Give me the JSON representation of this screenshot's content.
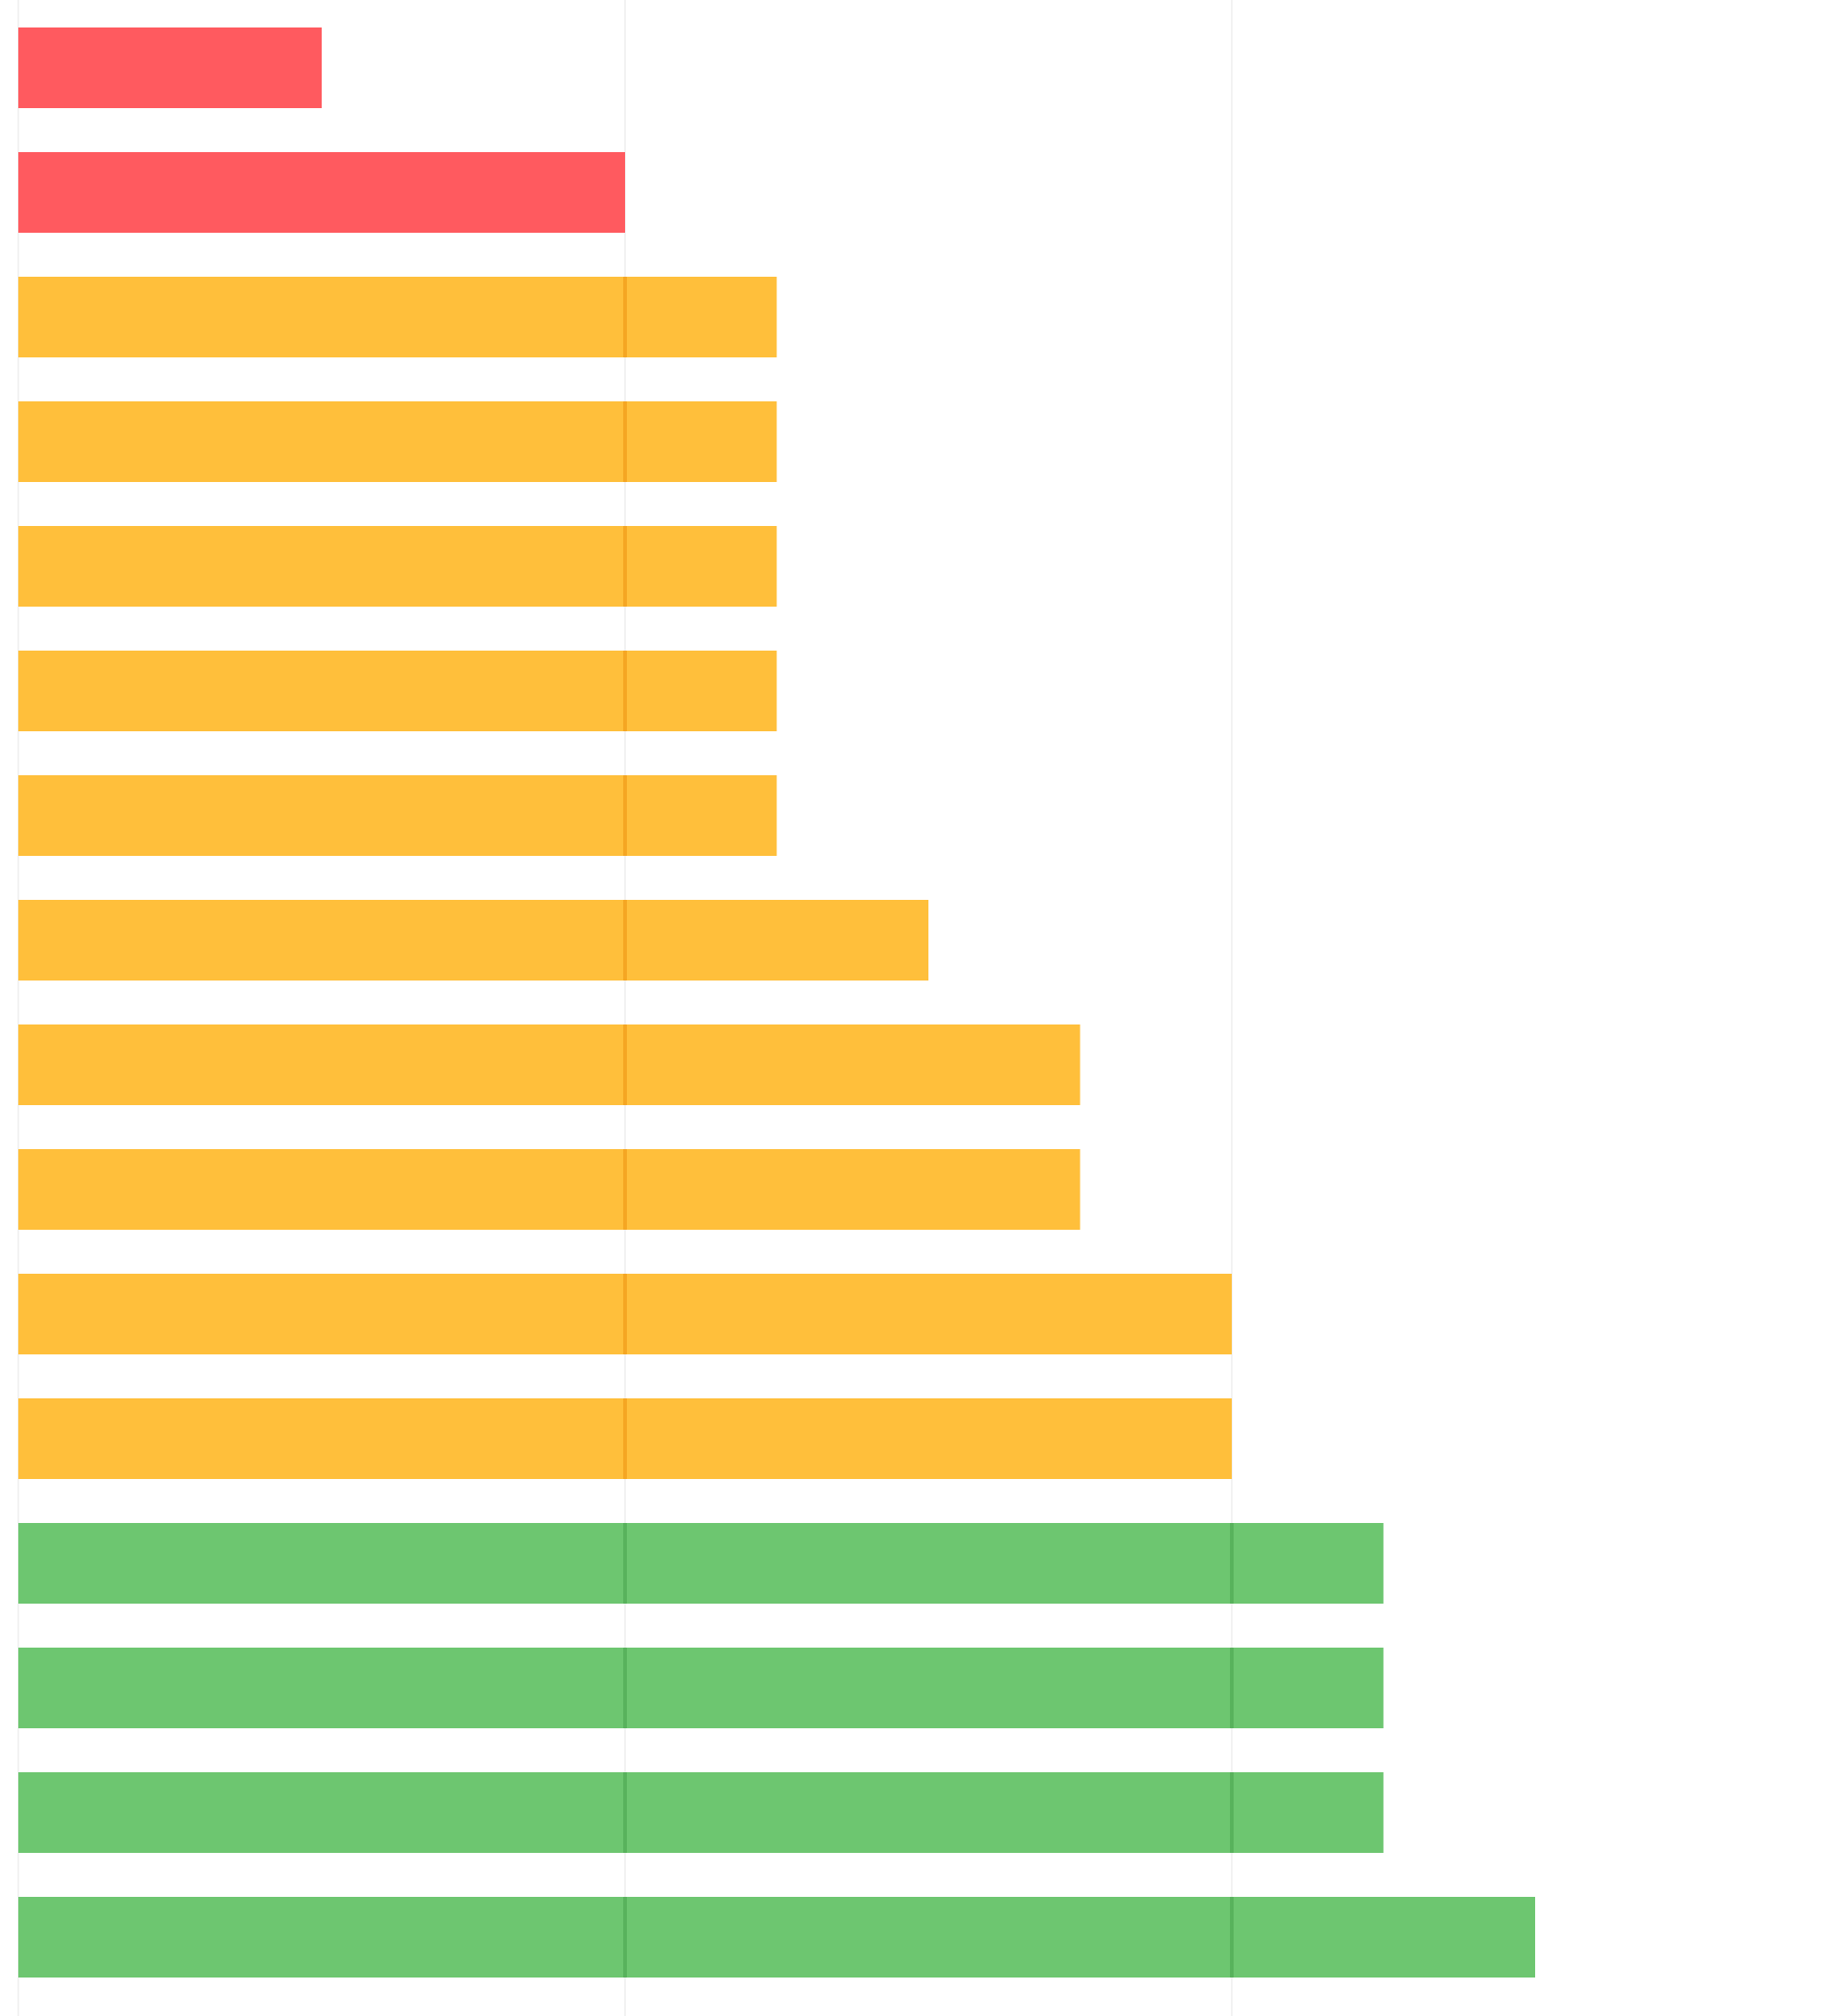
{
  "chart_data": {
    "type": "bar",
    "orientation": "horizontal",
    "title": "",
    "xlabel": "",
    "ylabel": "",
    "xlim": [
      0,
      4
    ],
    "grid": true,
    "legend": "none",
    "values": [
      0.5,
      1.0,
      1.25,
      1.25,
      1.25,
      1.25,
      1.25,
      1.5,
      1.75,
      1.75,
      2.0,
      2.0,
      2.25,
      2.25,
      2.25,
      2.5
    ],
    "colors": {
      "low": "#ff5a5f",
      "mid": "#ffbf3b",
      "high": "#6dc670"
    }
  }
}
